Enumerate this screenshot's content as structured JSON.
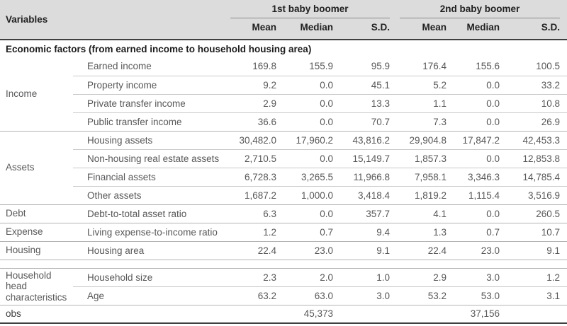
{
  "colors": {
    "header_bg": "#dcdcdc",
    "dark_rule": "#3f3f3f",
    "group_underline": "#8a8a8a",
    "full_line": "#b3b3b3",
    "partial_line": "#c9c9c9",
    "bold_text": "#212121",
    "body_text": "#58585a"
  },
  "table": {
    "header": {
      "variables_label": "Variables",
      "groups": [
        {
          "label": "1st baby boomer",
          "columns": [
            "Mean",
            "Median",
            "S.D."
          ]
        },
        {
          "label": "2nd baby boomer",
          "columns": [
            "Mean",
            "Median",
            "S.D."
          ]
        }
      ]
    },
    "section_header": "Economic factors (from earned income to household housing area)",
    "groups": [
      {
        "label": "Income",
        "rows": [
          {
            "item": "Earned income",
            "values": [
              "169.8",
              "155.9",
              "95.9",
              "176.4",
              "155.6",
              "100.5"
            ]
          },
          {
            "item": "Property income",
            "values": [
              "9.2",
              "0.0",
              "45.1",
              "5.2",
              "0.0",
              "33.2"
            ]
          },
          {
            "item": "Private transfer income",
            "values": [
              "2.9",
              "0.0",
              "13.3",
              "1.1",
              "0.0",
              "10.8"
            ]
          },
          {
            "item": "Public transfer income",
            "values": [
              "36.6",
              "0.0",
              "70.7",
              "7.3",
              "0.0",
              "26.9"
            ]
          }
        ]
      },
      {
        "label": "Assets",
        "rows": [
          {
            "item": "Housing assets",
            "values": [
              "30,482.0",
              "17,960.2",
              "43,816.2",
              "29,904.8",
              "17,847.2",
              "42,453.3"
            ]
          },
          {
            "item": "Non-housing real estate assets",
            "values": [
              "2,710.5",
              "0.0",
              "15,149.7",
              "1,857.3",
              "0.0",
              "12,853.8"
            ]
          },
          {
            "item": "Financial assets",
            "values": [
              "6,728.3",
              "3,265.5",
              "11,966.8",
              "7,958.1",
              "3,346.3",
              "14,785.4"
            ]
          },
          {
            "item": "Other assets",
            "values": [
              "1,687.2",
              "1,000.0",
              "3,418.4",
              "1,819.2",
              "1,115.4",
              "3,516.9"
            ]
          }
        ]
      },
      {
        "label": "Debt",
        "rows": [
          {
            "item": "Debt-to-total asset ratio",
            "values": [
              "6.3",
              "0.0",
              "357.7",
              "4.1",
              "0.0",
              "260.5"
            ]
          }
        ]
      },
      {
        "label": "Expense",
        "rows": [
          {
            "item": "Living expense-to-income ratio",
            "values": [
              "1.2",
              "0.7",
              "9.4",
              "1.3",
              "0.7",
              "10.7"
            ]
          }
        ]
      },
      {
        "label": "Housing",
        "rows": [
          {
            "item": "Housing area",
            "values": [
              "22.4",
              "23.0",
              "9.1",
              "22.4",
              "23.0",
              "9.1"
            ]
          }
        ]
      },
      {
        "label": "Household head characteristics",
        "spacer_before": true,
        "rows": [
          {
            "item": "Household size",
            "values": [
              "2.3",
              "2.0",
              "1.0",
              "2.9",
              "3.0",
              "1.2"
            ]
          },
          {
            "item": "Age",
            "values": [
              "63.2",
              "63.0",
              "3.0",
              "53.2",
              "53.0",
              "3.1"
            ]
          }
        ]
      }
    ],
    "footer": {
      "label": "obs",
      "group_values": [
        "45,373",
        "37,156"
      ]
    }
  }
}
